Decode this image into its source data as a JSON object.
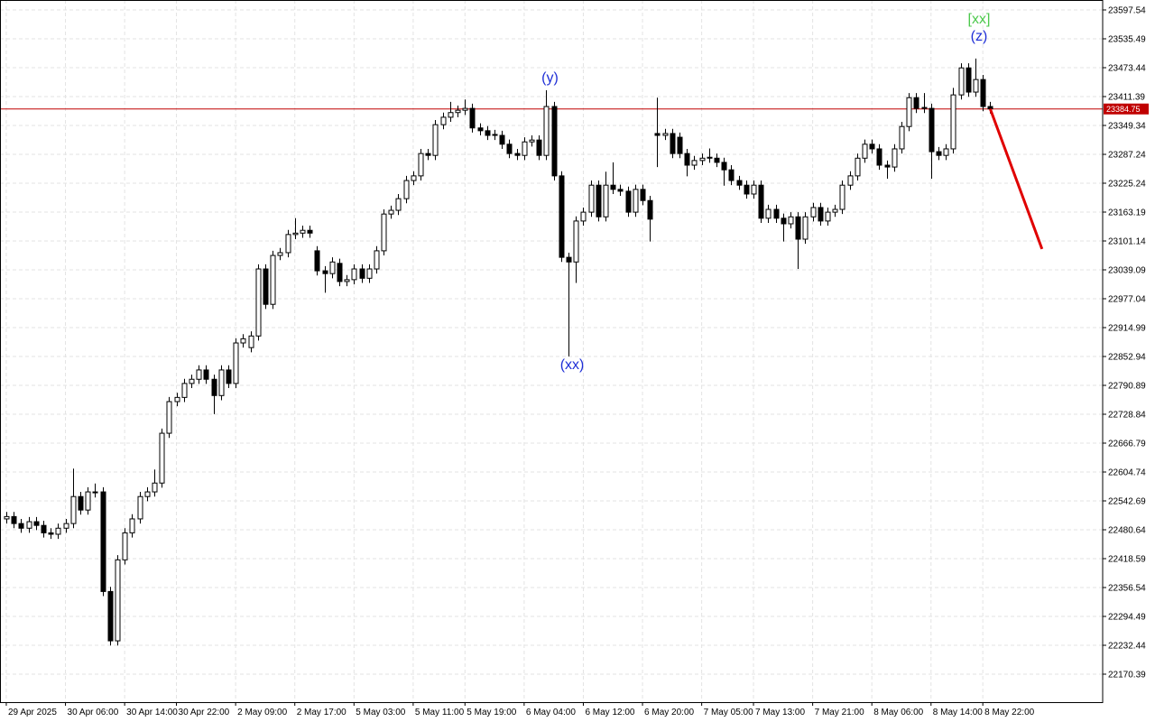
{
  "chart_data": {
    "type": "candlestick",
    "open": [
      22504,
      22509,
      22494,
      22484,
      22498,
      22490,
      22474,
      22471,
      22484,
      22494,
      22552,
      22523,
      22562,
      22562,
      22348,
      22242,
      22416,
      22474,
      22504,
      22552,
      22562,
      22581,
      22688,
      22756,
      22765,
      22795,
      22804,
      22824,
      22804,
      22769,
      22824,
      22795,
      22882,
      22872,
      22897,
      23041,
      22965,
      23070,
      23076,
      23115,
      23118,
      23124,
      23080,
      23037,
      23031,
      23053,
      23014,
      23018,
      23041,
      23021,
      23041,
      23080,
      23159,
      23167,
      23192,
      23231,
      23241,
      23289,
      23285,
      23351,
      23367,
      23377,
      23382,
      23386,
      23344,
      23338,
      23328,
      23328,
      23309,
      23289,
      23285,
      23314,
      23318,
      23285,
      23390,
      23241,
      23066,
      23056,
      23144,
      23163,
      23221,
      23153,
      23221,
      23212,
      23208,
      23163,
      23212,
      23188,
      23332,
      23328,
      23332,
      23324,
      23289,
      23264,
      23274,
      23279,
      23279,
      23270,
      23254,
      23231,
      23221,
      23202,
      23221,
      23150,
      23169,
      23150,
      23138,
      23153,
      23105,
      23153,
      23173,
      23144,
      23163,
      23169,
      23221,
      23241,
      23279,
      23309,
      23299,
      23264,
      23260,
      23299,
      23347,
      23409,
      23386,
      23386,
      23293,
      23285,
      23299,
      23415,
      23473,
      23421,
      23448,
      23390
    ],
    "high": [
      22519,
      22519,
      22504,
      22508,
      22508,
      22500,
      22484,
      22494,
      22504,
      22612,
      22562,
      22572,
      22580,
      22572,
      22358,
      22426,
      22484,
      22514,
      22562,
      22572,
      22610,
      22698,
      22766,
      22775,
      22805,
      22814,
      22834,
      22834,
      22814,
      22834,
      22834,
      22892,
      22901,
      22907,
      23051,
      23051,
      23080,
      23086,
      23125,
      23150,
      23134,
      23134,
      23090,
      23047,
      23066,
      23063,
      23028,
      23051,
      23051,
      23051,
      23090,
      23169,
      23177,
      23202,
      23241,
      23251,
      23299,
      23299,
      23361,
      23377,
      23400,
      23392,
      23405,
      23396,
      23354,
      23348,
      23340,
      23338,
      23319,
      23299,
      23324,
      23328,
      23328,
      23425,
      23400,
      23251,
      23076,
      23154,
      23173,
      23231,
      23231,
      23250,
      23270,
      23222,
      23218,
      23222,
      23222,
      23198,
      23409,
      23342,
      23342,
      23334,
      23299,
      23284,
      23289,
      23300,
      23289,
      23280,
      23264,
      23241,
      23231,
      23231,
      23231,
      23179,
      23179,
      23160,
      23163,
      23163,
      23163,
      23183,
      23183,
      23173,
      23179,
      23231,
      23251,
      23289,
      23319,
      23319,
      23309,
      23274,
      23309,
      23357,
      23419,
      23419,
      23419,
      23396,
      23303,
      23309,
      23430,
      23483,
      23483,
      23493,
      23458,
      23400
    ],
    "low": [
      22494,
      22484,
      22474,
      22474,
      22480,
      22464,
      22461,
      22461,
      22474,
      22484,
      22513,
      22513,
      22550,
      22338,
      22232,
      22232,
      22406,
      22464,
      22494,
      22542,
      22552,
      22571,
      22678,
      22746,
      22755,
      22785,
      22794,
      22794,
      22729,
      22759,
      22785,
      22785,
      22872,
      22862,
      22887,
      22955,
      22955,
      23060,
      23066,
      23105,
      23108,
      23108,
      23027,
      22990,
      23021,
      23004,
      23004,
      23008,
      23011,
      23011,
      23031,
      23070,
      23149,
      23157,
      23182,
      23221,
      23231,
      23275,
      23275,
      23341,
      23357,
      23367,
      23372,
      23334,
      23328,
      23318,
      23318,
      23299,
      23279,
      23275,
      23275,
      23304,
      23275,
      23275,
      23231,
      23056,
      22853,
      23011,
      23134,
      23153,
      23143,
      23143,
      23202,
      23198,
      23153,
      23153,
      23178,
      23100,
      23260,
      23318,
      23279,
      23279,
      23240,
      23254,
      23264,
      23269,
      23260,
      23220,
      23221,
      23211,
      23192,
      23192,
      23140,
      23140,
      23140,
      23100,
      23128,
      23041,
      23095,
      23143,
      23134,
      23134,
      23153,
      23159,
      23211,
      23231,
      23269,
      23289,
      23254,
      23235,
      23250,
      23289,
      23337,
      23376,
      23376,
      23235,
      23275,
      23275,
      23289,
      23405,
      23411,
      23411,
      23380,
      23375
    ],
    "close": [
      22509,
      22494,
      22484,
      22498,
      22490,
      22474,
      22471,
      22484,
      22494,
      22552,
      22523,
      22562,
      22560,
      22348,
      22242,
      22416,
      22474,
      22504,
      22552,
      22562,
      22581,
      22688,
      22756,
      22765,
      22795,
      22804,
      22824,
      22804,
      22769,
      22824,
      22795,
      22882,
      22891,
      22897,
      23041,
      22965,
      23070,
      23076,
      23115,
      23118,
      23124,
      23118,
      23037,
      23031,
      23056,
      23014,
      23018,
      23041,
      23021,
      23041,
      23080,
      23159,
      23167,
      23192,
      23231,
      23241,
      23289,
      23285,
      23351,
      23367,
      23377,
      23382,
      23386,
      23344,
      23338,
      23328,
      23330,
      23309,
      23289,
      23285,
      23314,
      23318,
      23285,
      23390,
      23241,
      23066,
      23056,
      23144,
      23163,
      23221,
      23153,
      23221,
      23212,
      23208,
      23163,
      23212,
      23188,
      23148,
      23328,
      23332,
      23289,
      23289,
      23264,
      23274,
      23279,
      23281,
      23270,
      23254,
      23231,
      23221,
      23202,
      23221,
      23150,
      23169,
      23150,
      23138,
      23153,
      23105,
      23153,
      23173,
      23144,
      23163,
      23169,
      23221,
      23241,
      23279,
      23309,
      23299,
      23264,
      23260,
      23299,
      23347,
      23409,
      23386,
      23388,
      23293,
      23285,
      23299,
      23415,
      23473,
      23421,
      23448,
      23390,
      23385
    ],
    "up_color": "#ffffff",
    "down_color": "#000000",
    "xlim": [
      -0.85,
      148.2
    ],
    "xticks": [
      {
        "value": 0,
        "label": "29 Apr 2025"
      },
      {
        "value": 8,
        "label": "30 Apr 06:00"
      },
      {
        "value": 16,
        "label": "30 Apr 14:00"
      },
      {
        "value": 23,
        "label": "30 Apr 22:00"
      },
      {
        "value": 31,
        "label": "2 May 09:00"
      },
      {
        "value": 39,
        "label": "2 May 17:00"
      },
      {
        "value": 47,
        "label": "5 May 03:00"
      },
      {
        "value": 55,
        "label": "5 May 11:00"
      },
      {
        "value": 62,
        "label": "5 May 19:00"
      },
      {
        "value": 70,
        "label": "6 May 04:00"
      },
      {
        "value": 78,
        "label": "6 May 12:00"
      },
      {
        "value": 86,
        "label": "6 May 20:00"
      },
      {
        "value": 94,
        "label": "7 May 05:00"
      },
      {
        "value": 101,
        "label": "7 May 13:00"
      },
      {
        "value": 109,
        "label": "7 May 21:00"
      },
      {
        "value": 117,
        "label": "8 May 06:00"
      },
      {
        "value": 125,
        "label": "8 May 14:00"
      },
      {
        "value": 132,
        "label": "8 May 22:00"
      }
    ],
    "ylim": [
      22110.28,
      23618.87
    ],
    "yticks": [
      23597.54,
      23535.49,
      23473.44,
      23411.39,
      23349.34,
      23287.24,
      23225.24,
      23163.19,
      23101.14,
      23039.09,
      22977.04,
      22914.99,
      22852.94,
      22790.89,
      22728.84,
      22666.79,
      22604.74,
      22542.69,
      22480.64,
      22418.59,
      22356.54,
      22294.49,
      22232.44,
      22170.39
    ],
    "grid": true,
    "current_price": 23384.75,
    "current_price_color": "#c00000",
    "forecast": {
      "x": [
        133,
        140
      ],
      "values": [
        23385,
        23084
      ],
      "color": "#e00000"
    },
    "annotations": [
      {
        "text": "(y)",
        "color": "#1f2fd6"
      },
      {
        "text": "(xx)",
        "color": "#1f2fd6"
      },
      {
        "text": "(z)",
        "color": "#1f2fd6"
      },
      {
        "text": "[xx]",
        "color": "#4cc94c"
      }
    ]
  }
}
